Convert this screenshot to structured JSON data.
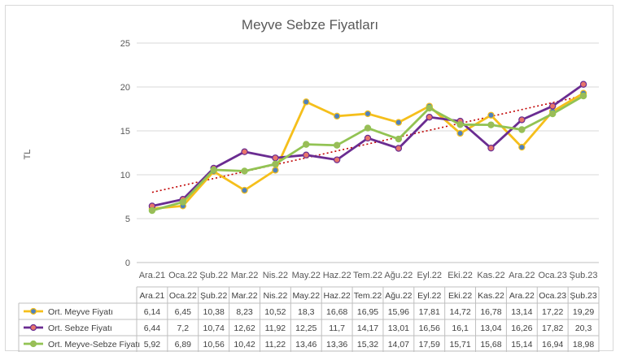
{
  "chart_data": {
    "type": "line",
    "title": "Meyve Sebze Fiyatları",
    "xlabel": "",
    "ylabel": "TL",
    "ylim": [
      0,
      25
    ],
    "yticks": [
      0,
      5,
      10,
      15,
      20,
      25
    ],
    "grid": true,
    "legend": "data-table",
    "categories": [
      "Ara.21",
      "Oca.22",
      "Şub.22",
      "Mar.22",
      "Nis.22",
      "May.22",
      "Haz.22",
      "Tem.22",
      "Ağu.22",
      "Eyl.22",
      "Eki.22",
      "Kas.22",
      "Ara.22",
      "Oca.23",
      "Şub.23"
    ],
    "series": [
      {
        "name": "Ort. Meyve Fiyatı",
        "color": "#f5bf1b",
        "marker": "#4f81bd",
        "values": [
          6.14,
          6.45,
          10.38,
          8.23,
          10.52,
          18.3,
          16.68,
          16.95,
          15.96,
          17.81,
          14.72,
          16.78,
          13.14,
          17.22,
          19.29
        ],
        "labels": [
          "6,14",
          "6,45",
          "10,38",
          "8,23",
          "10,52",
          "18,3",
          "16,68",
          "16,95",
          "15,96",
          "17,81",
          "14,72",
          "16,78",
          "13,14",
          "17,22",
          "19,29"
        ]
      },
      {
        "name": "Ort. Sebze Fiyatı",
        "color": "#6a2c91",
        "marker": "#e8756b",
        "values": [
          6.44,
          7.2,
          10.74,
          12.62,
          11.92,
          12.25,
          11.7,
          14.17,
          13.01,
          16.56,
          16.1,
          13.04,
          16.26,
          17.82,
          20.3
        ],
        "labels": [
          "6,44",
          "7,2",
          "10,74",
          "12,62",
          "11,92",
          "12,25",
          "11,7",
          "14,17",
          "13,01",
          "16,56",
          "16,1",
          "13,04",
          "16,26",
          "17,82",
          "20,3"
        ]
      },
      {
        "name": "Ort. Meyve-Sebze Fiyatı",
        "color": "#92c353",
        "marker": "#9bbb59",
        "values": [
          5.92,
          6.89,
          10.56,
          10.42,
          11.22,
          13.46,
          13.36,
          15.32,
          14.07,
          17.59,
          15.71,
          15.68,
          15.14,
          16.94,
          18.98
        ],
        "labels": [
          "5,92",
          "6,89",
          "10,56",
          "10,42",
          "11,22",
          "13,46",
          "13,36",
          "15,32",
          "14,07",
          "17,59",
          "15,71",
          "15,68",
          "15,14",
          "16,94",
          "18,98"
        ]
      }
    ],
    "trendline": {
      "color": "#c00000",
      "style": "dotted",
      "start": 8.0,
      "end": 19.0
    }
  }
}
